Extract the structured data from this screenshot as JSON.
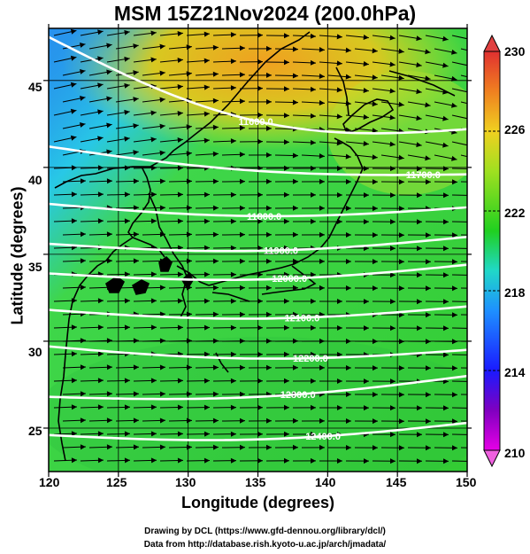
{
  "title": "MSM 15Z21Nov2024 (200.0hPa)",
  "xlabel": "Longitude (degrees)",
  "ylabel": "Latitude  (degrees)",
  "x_ticks": [
    "120",
    "125",
    "130",
    "135",
    "140",
    "145",
    "150"
  ],
  "y_ticks": [
    "25",
    "30",
    "35",
    "40",
    "45"
  ],
  "colorbar_ticks": [
    "230",
    "226",
    "222",
    "218",
    "214",
    "210"
  ],
  "contour_labels": [
    "11600.0",
    "11700.0",
    "11800.0",
    "11900.0",
    "12000.0",
    "12100.0",
    "12200.0",
    "12300.0",
    "12400.0"
  ],
  "credit_line1": "Drawing by DCL (https://www.gfd-dennou.org/library/dcl/)",
  "credit_line2": "Data from http://database.rish.kyoto-u.ac.jp/arch/jmadata/",
  "chart_data": {
    "type": "heatmap",
    "title": "MSM 15Z21Nov2024 (200.0hPa)",
    "xlabel": "Longitude (degrees)",
    "ylabel": "Latitude  (degrees)",
    "xlim": [
      120,
      150
    ],
    "ylim": [
      22.5,
      48
    ],
    "x_ticks": [
      120,
      125,
      130,
      135,
      140,
      145,
      150
    ],
    "y_ticks": [
      25,
      30,
      35,
      40,
      45
    ],
    "colorbar": {
      "min": 210,
      "max": 230,
      "ticks": [
        210,
        214,
        218,
        222,
        226,
        230
      ]
    },
    "geopotential_contours": [
      {
        "level": 11600.0,
        "lat_at_120": 47.5,
        "lat_at_150": 42.2
      },
      {
        "level": 11700.0,
        "lat_at_120": 41.2,
        "lat_at_150": 39.6
      },
      {
        "level": 11800.0,
        "lat_at_120": 37.9,
        "lat_at_150": 37.7
      },
      {
        "level": 11900.0,
        "lat_at_120": 35.6,
        "lat_at_150": 36.0
      },
      {
        "level": 12000.0,
        "lat_at_120": 33.9,
        "lat_at_150": 34.4
      },
      {
        "level": 12100.0,
        "lat_at_120": 31.8,
        "lat_at_150": 32.0
      },
      {
        "level": 12200.0,
        "lat_at_120": 29.7,
        "lat_at_150": 29.5
      },
      {
        "level": 12300.0,
        "lat_at_120": 26.8,
        "lat_at_150": 28.0
      },
      {
        "level": 12400.0,
        "lat_at_120": 24.6,
        "lat_at_150": 25.3
      }
    ],
    "wind_flow": "westerly"
  }
}
